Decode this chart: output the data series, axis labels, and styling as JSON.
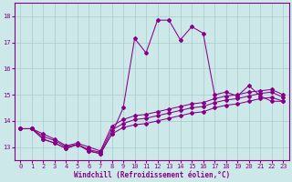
{
  "xlabel": "Windchill (Refroidissement éolien,°C)",
  "background_color": "#cce8e8",
  "line_color": "#880088",
  "grid_color": "#aacccc",
  "xlim": [
    -0.5,
    23.5
  ],
  "ylim": [
    12.5,
    18.5
  ],
  "yticks": [
    13,
    14,
    15,
    16,
    17,
    18
  ],
  "xticks": [
    0,
    1,
    2,
    3,
    4,
    5,
    6,
    7,
    8,
    9,
    10,
    11,
    12,
    13,
    14,
    15,
    16,
    17,
    18,
    19,
    20,
    21,
    22,
    23
  ],
  "spiky_x": [
    0,
    1,
    2,
    3,
    4,
    5,
    6,
    7,
    8,
    9,
    10,
    11,
    12,
    13,
    14,
    15,
    16,
    17,
    18,
    19,
    20,
    21,
    22,
    23
  ],
  "spiky_y": [
    13.7,
    13.7,
    13.3,
    13.15,
    12.95,
    13.1,
    12.85,
    12.75,
    13.5,
    14.5,
    17.15,
    16.6,
    17.85,
    17.85,
    17.1,
    17.6,
    17.35,
    15.0,
    15.1,
    14.95,
    15.35,
    14.95,
    14.75,
    14.75
  ],
  "diag1_x": [
    0,
    1,
    2,
    3,
    4,
    5,
    6,
    7,
    8,
    9,
    10,
    11,
    12,
    13,
    14,
    15,
    16,
    17,
    18,
    19,
    20,
    21,
    22,
    23
  ],
  "diag1_y": [
    13.7,
    13.7,
    13.3,
    13.15,
    12.95,
    13.1,
    12.85,
    12.75,
    13.5,
    13.75,
    13.85,
    13.9,
    14.0,
    14.1,
    14.2,
    14.3,
    14.35,
    14.5,
    14.6,
    14.65,
    14.75,
    14.85,
    14.9,
    14.75
  ],
  "diag2_x": [
    0,
    1,
    2,
    3,
    4,
    5,
    6,
    7,
    8,
    9,
    10,
    11,
    12,
    13,
    14,
    15,
    16,
    17,
    18,
    19,
    20,
    21,
    22,
    23
  ],
  "diag2_y": [
    13.7,
    13.7,
    13.4,
    13.25,
    13.0,
    13.1,
    12.9,
    12.8,
    13.65,
    13.9,
    14.05,
    14.1,
    14.2,
    14.3,
    14.4,
    14.5,
    14.55,
    14.7,
    14.8,
    14.85,
    14.95,
    15.05,
    15.1,
    14.9
  ],
  "diag3_x": [
    0,
    1,
    2,
    3,
    4,
    5,
    6,
    7,
    8,
    9,
    10,
    11,
    12,
    13,
    14,
    15,
    16,
    17,
    18,
    19,
    20,
    21,
    22,
    23
  ],
  "diag3_y": [
    13.7,
    13.7,
    13.5,
    13.3,
    13.05,
    13.15,
    13.0,
    12.85,
    13.8,
    14.05,
    14.2,
    14.25,
    14.35,
    14.45,
    14.55,
    14.65,
    14.7,
    14.85,
    14.95,
    15.0,
    15.1,
    15.15,
    15.2,
    15.0
  ]
}
